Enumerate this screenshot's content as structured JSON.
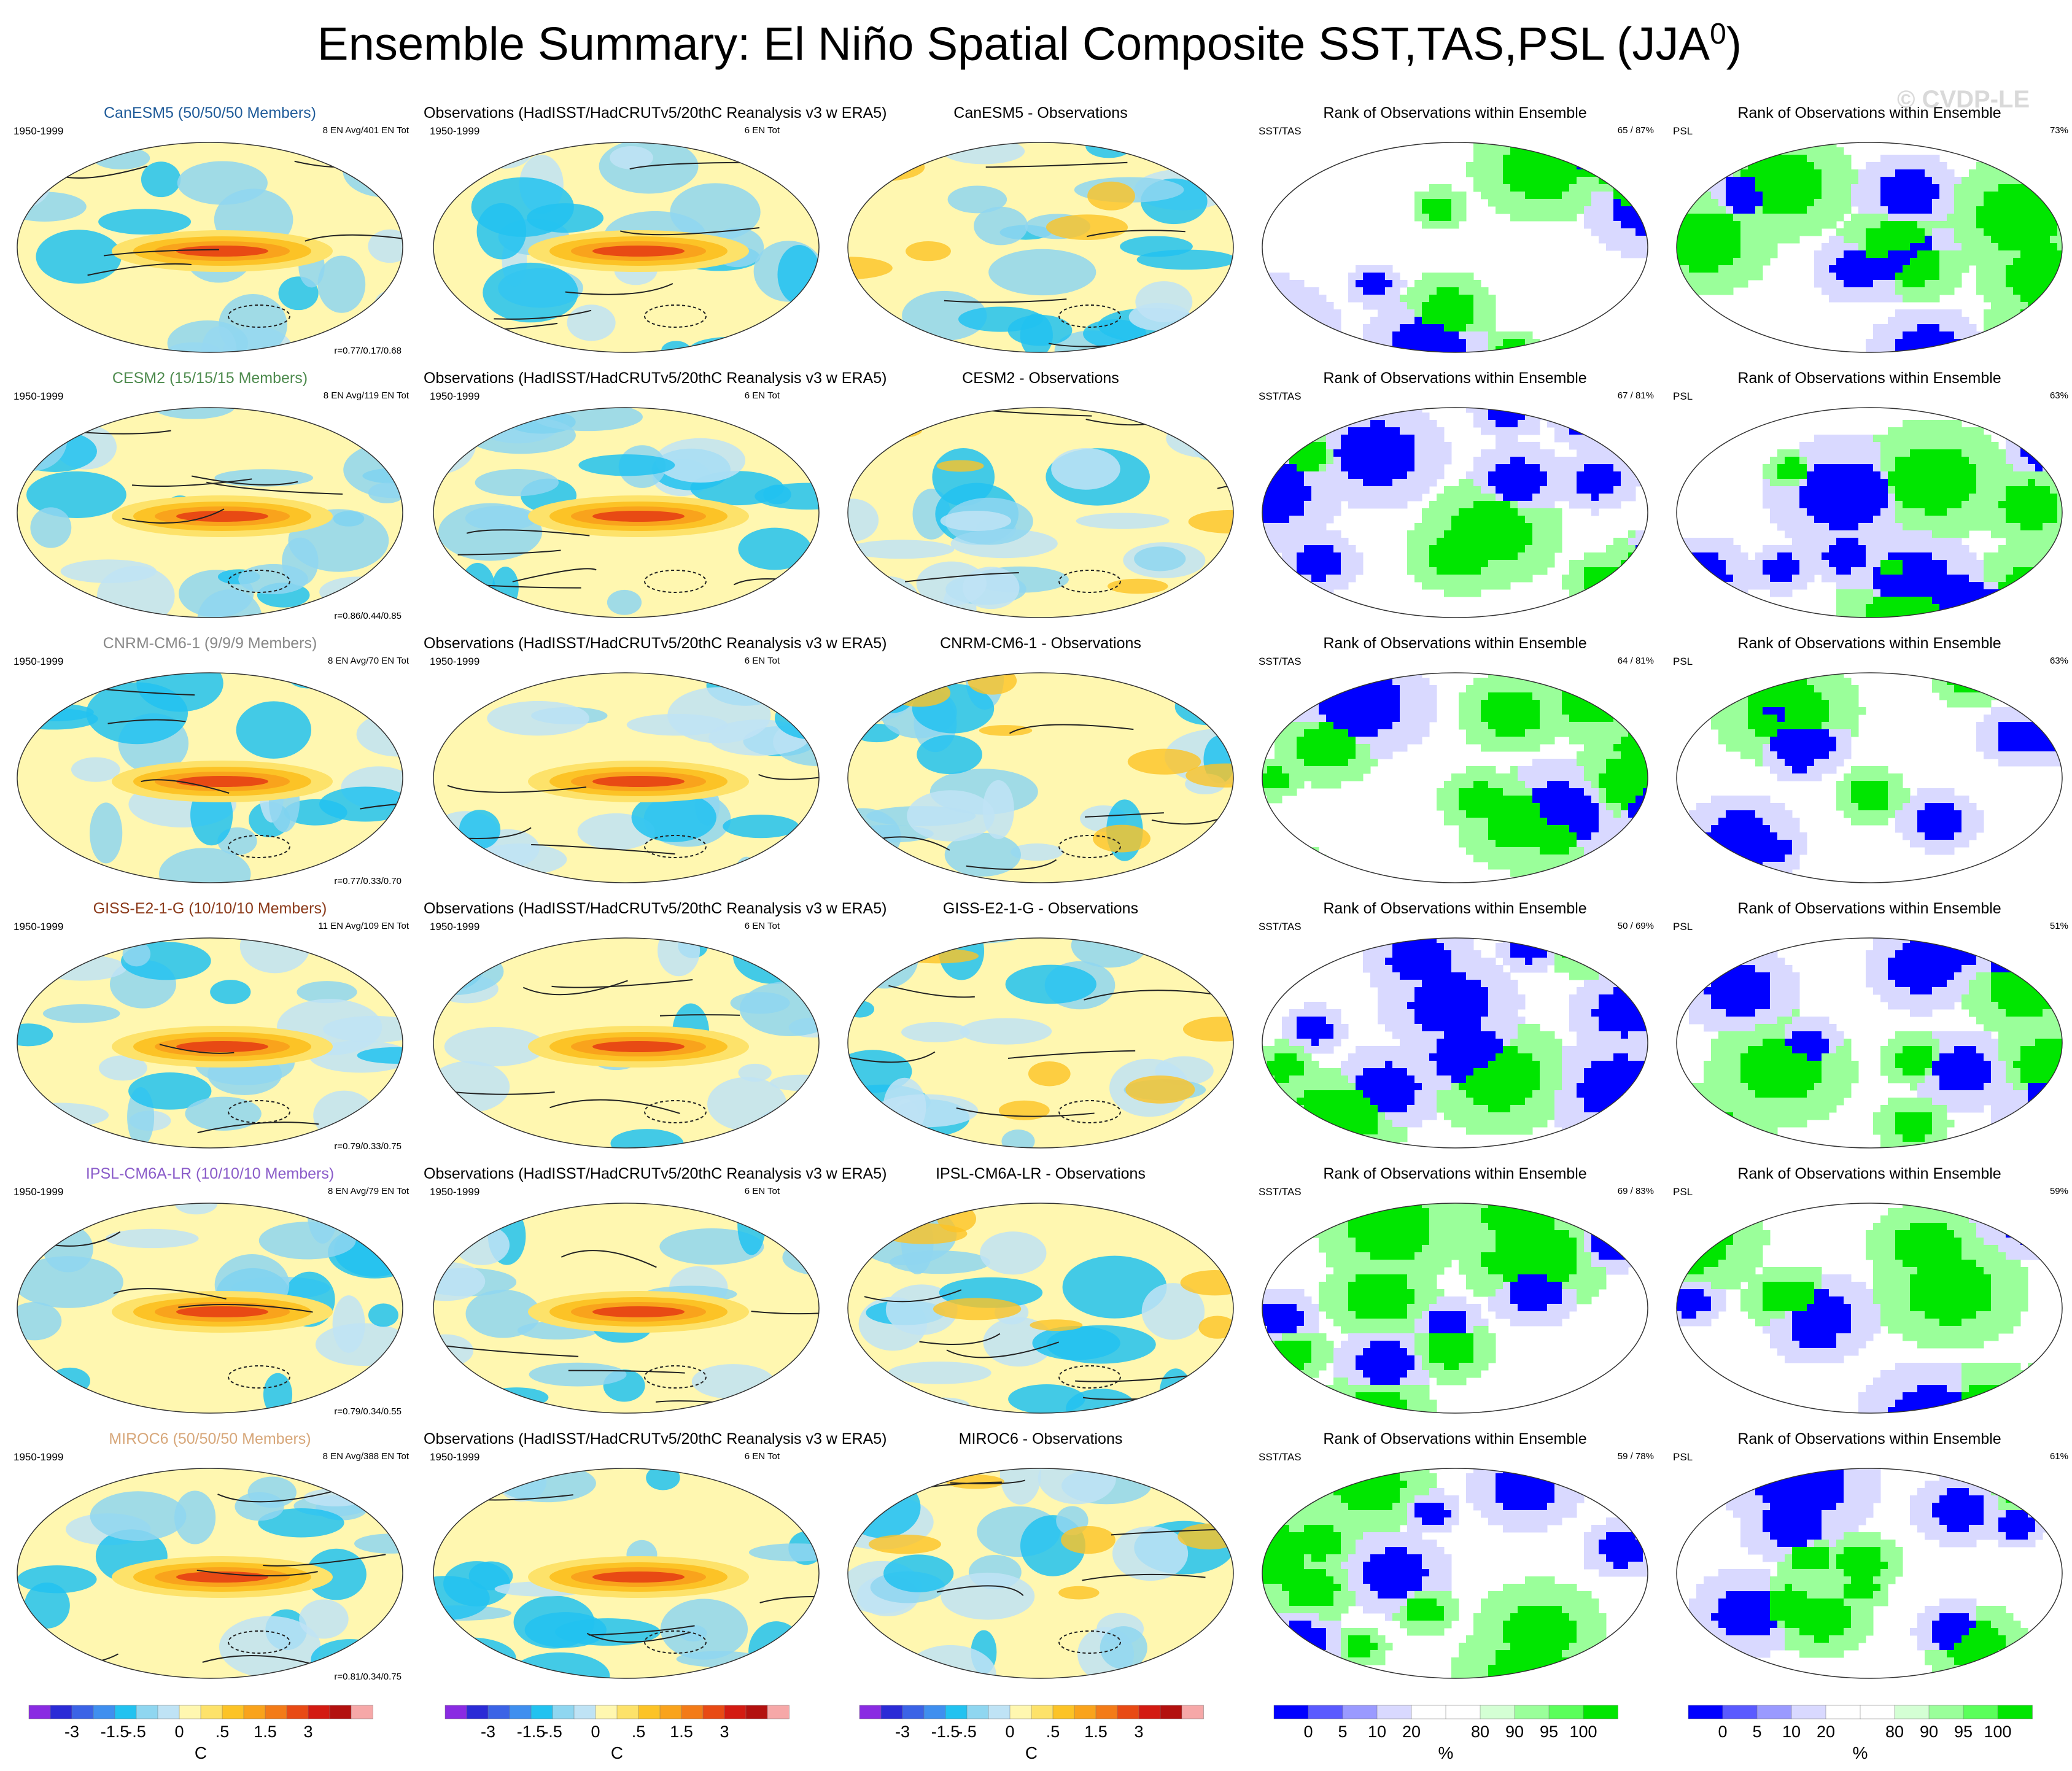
{
  "title_main": "Ensemble Summary: El Niño Spatial Composite SST,TAS,PSL (JJA",
  "title_sup": "0",
  "title_close": ")",
  "watermark": "© CVDP-LE",
  "colors": {
    "anomaly_scale": [
      "#8a2be2",
      "#2b2bd6",
      "#3b63e6",
      "#3f8fef",
      "#22c2f0",
      "#8fd6f0",
      "#bfe3f5",
      "#fff7b0",
      "#fde26a",
      "#fcc326",
      "#f9a31c",
      "#f37b18",
      "#e84a14",
      "#d31b12",
      "#b3110f",
      "#f6a8a8"
    ],
    "rank_scale": [
      "#0000ff",
      "#5a5aff",
      "#9a9aff",
      "#d9d9ff",
      "#ffffff",
      "#ffffff",
      "#d4ffd4",
      "#9aff9a",
      "#5aff5a",
      "#00e600"
    ],
    "contour": "#222222"
  },
  "rows": [
    {
      "model": "CanESM5 (50/50/50 Members)",
      "model_color": "#1f5b99",
      "model_info": "8 EN Avg/401 EN Tot",
      "corr": "r=0.77/0.17/0.68",
      "diff_title": "CanESM5 - Observations",
      "rank_sst": "65 / 87%",
      "rank_psl": "73%"
    },
    {
      "model": "CESM2 (15/15/15 Members)",
      "model_color": "#4e8b4e",
      "model_info": "8 EN Avg/119 EN Tot",
      "corr": "r=0.86/0.44/0.85",
      "diff_title": "CESM2 - Observations",
      "rank_sst": "67 / 81%",
      "rank_psl": "63%"
    },
    {
      "model": "CNRM-CM6-1 (9/9/9 Members)",
      "model_color": "#888888",
      "model_info": "8 EN Avg/70 EN Tot",
      "corr": "r=0.77/0.33/0.70",
      "diff_title": "CNRM-CM6-1 - Observations",
      "rank_sst": "64 / 81%",
      "rank_psl": "63%"
    },
    {
      "model": "GISS-E2-1-G (10/10/10 Members)",
      "model_color": "#8b3a1a",
      "model_info": "11 EN Avg/109 EN Tot",
      "corr": "r=0.79/0.33/0.75",
      "diff_title": "GISS-E2-1-G - Observations",
      "rank_sst": "50 / 69%",
      "rank_psl": "51%"
    },
    {
      "model": "IPSL-CM6A-LR (10/10/10 Members)",
      "model_color": "#8a5cc9",
      "model_info": "8 EN Avg/79 EN Tot",
      "corr": "r=0.79/0.34/0.55",
      "diff_title": "IPSL-CM6A-LR - Observations",
      "rank_sst": "69 / 83%",
      "rank_psl": "59%"
    },
    {
      "model": "MIROC6 (50/50/50 Members)",
      "model_color": "#d7a77a",
      "model_info": "8 EN Avg/388 EN Tot",
      "corr": "r=0.81/0.34/0.75",
      "diff_title": "MIROC6 - Observations",
      "rank_sst": "59 / 78%",
      "rank_psl": "61%"
    }
  ],
  "obs_title": "Observations (HadISST/HadCRUTv5/20thC Reanalysis v3 w ERA5)",
  "obs_info": "6 EN Tot",
  "period": "1950-1999",
  "rank_title": "Rank of Observations within Ensemble",
  "rank_label_sst": "SST/TAS",
  "rank_label_psl": "PSL",
  "chart_data": {
    "type": "heatmap",
    "description_fields": [
      "model composite",
      "observations composite",
      "model minus observations",
      "rank SST/TAS",
      "rank PSL"
    ],
    "anomaly_colorbar": {
      "unit": "C",
      "ticks": [
        "-3",
        "-1.5",
        "-.5",
        "0",
        ".5",
        "1.5",
        "3"
      ],
      "n_colors": 16
    },
    "rank_colorbar": {
      "unit": "%",
      "ticks": [
        "0",
        "5",
        "10",
        "20",
        "80",
        "90",
        "95",
        "100"
      ],
      "n_colors": 10
    },
    "rank_observations_sst_tas_percent": [
      {
        "model": "CanESM5",
        "value": "65 / 87%"
      },
      {
        "model": "CESM2",
        "value": "67 / 81%"
      },
      {
        "model": "CNRM-CM6-1",
        "value": "64 / 81%"
      },
      {
        "model": "GISS-E2-1-G",
        "value": "50 / 69%"
      },
      {
        "model": "IPSL-CM6A-LR",
        "value": "69 / 83%"
      },
      {
        "model": "MIROC6",
        "value": "59 / 78%"
      }
    ],
    "rank_observations_psl_percent": [
      {
        "model": "CanESM5",
        "value": 73
      },
      {
        "model": "CESM2",
        "value": 63
      },
      {
        "model": "CNRM-CM6-1",
        "value": 63
      },
      {
        "model": "GISS-E2-1-G",
        "value": 51
      },
      {
        "model": "IPSL-CM6A-LR",
        "value": 59
      },
      {
        "model": "MIROC6",
        "value": 61
      }
    ]
  }
}
